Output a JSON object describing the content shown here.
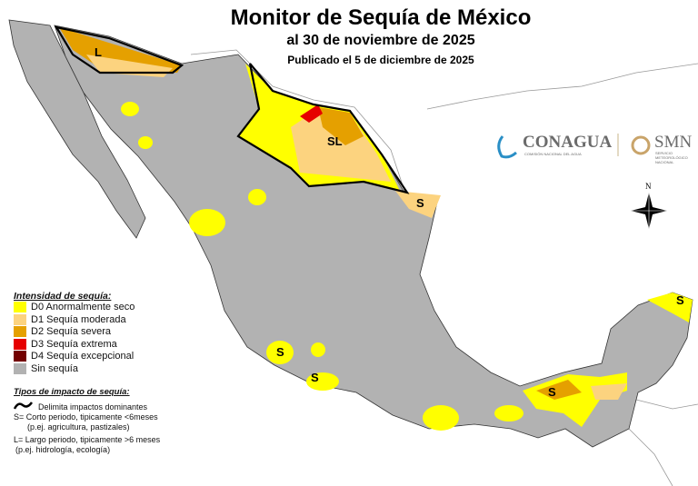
{
  "title": "Monitor de Sequía de México",
  "subtitle": "al 30 de noviembre de 2025",
  "published": "Publicado el 5 de diciembre de 2025",
  "legend": {
    "heading": "Intensidad de sequía:",
    "items": [
      {
        "label": "D0 Anormalmente seco",
        "color": "#ffff00"
      },
      {
        "label": "D1 Sequía moderada",
        "color": "#fcd37f"
      },
      {
        "label": "D2 Sequía severa",
        "color": "#e5a000"
      },
      {
        "label": "D3 Sequía extrema",
        "color": "#e60000"
      },
      {
        "label": "D4 Sequía excepcional",
        "color": "#730000"
      },
      {
        "label": "Sin sequía",
        "color": "#b2b2b2"
      }
    ]
  },
  "impacts": {
    "heading": "Tipos de impacto de sequía:",
    "line_label": "Delimita impactos dominantes",
    "s_label": "S= Corto periodo, tipicamente <6meses",
    "s_example": "(p.ej. agricultura, pastizales)",
    "l_label": "L= Largo periodo, tipicamente >6 meses",
    "l_example": "(p.ej. hidrología, ecología)"
  },
  "logos": {
    "conagua": "CONAGUA",
    "conagua_sub": "COMISIÓN NACIONAL DEL AGUA",
    "smn": "SMN",
    "smn_sub": "SERVICIO METEOROLÓGICO NACIONAL"
  },
  "compass": {
    "north": "N"
  },
  "map_labels": [
    "L",
    "SL",
    "S",
    "S",
    "S",
    "S",
    "S"
  ]
}
